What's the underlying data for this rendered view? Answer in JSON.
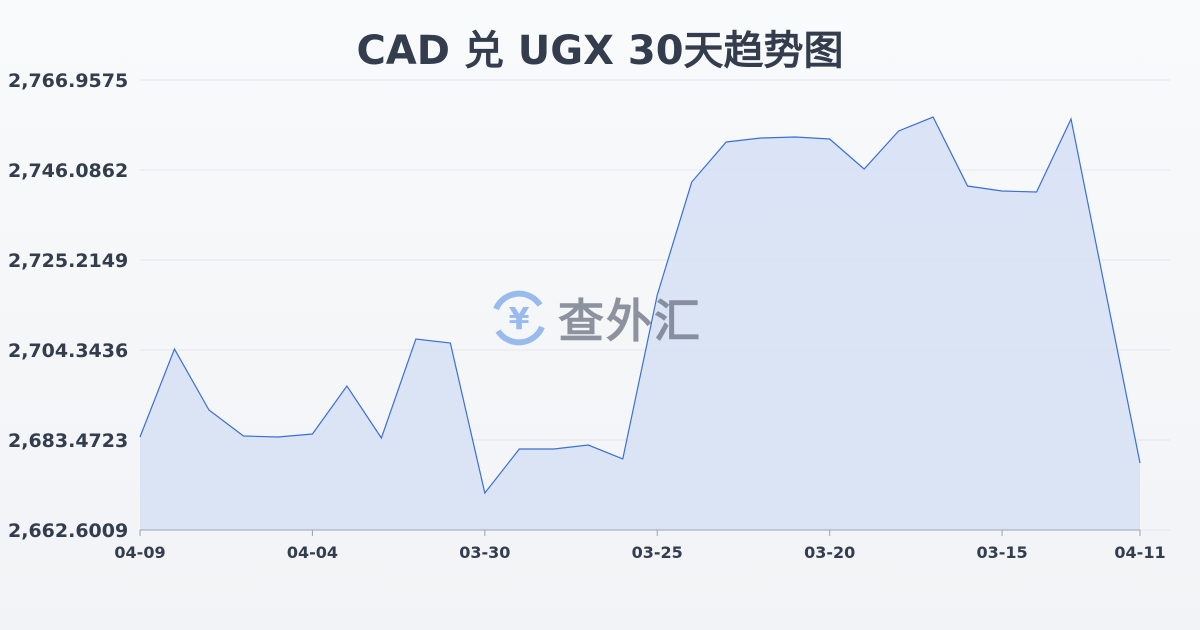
{
  "chart_data": {
    "type": "area",
    "title": "CAD 兑 UGX 30天趋势图",
    "xlabel": "",
    "ylabel": "",
    "ylim": [
      2662.6009,
      2766.9575
    ],
    "y_ticks": [
      "2,662.6009",
      "2,683.4723",
      "2,704.3436",
      "2,725.2149",
      "2,746.0862",
      "2,766.9575"
    ],
    "x_ticks": [
      {
        "label": "04-09",
        "index": 0
      },
      {
        "label": "04-04",
        "index": 5
      },
      {
        "label": "03-30",
        "index": 10
      },
      {
        "label": "03-25",
        "index": 15
      },
      {
        "label": "03-20",
        "index": 20
      },
      {
        "label": "03-15",
        "index": 25
      },
      {
        "label": "04-11",
        "index": 29
      }
    ],
    "values": [
      2684.17,
      2704.57,
      2690.43,
      2684.4,
      2684.17,
      2684.86,
      2695.99,
      2683.94,
      2706.89,
      2705.97,
      2671.18,
      2681.38,
      2681.38,
      2682.31,
      2679.07,
      2717.1,
      2743.3,
      2752.58,
      2753.5,
      2753.74,
      2753.27,
      2746.32,
      2755.13,
      2758.37,
      2742.37,
      2741.21,
      2740.98,
      2757.91,
      2718.02,
      2678.14
    ],
    "grid": true,
    "line_color": "#3a6fd8",
    "fill_color": "#d6e0f5"
  },
  "watermark": {
    "text": "查外汇",
    "icon": "yen-exchange-icon"
  }
}
